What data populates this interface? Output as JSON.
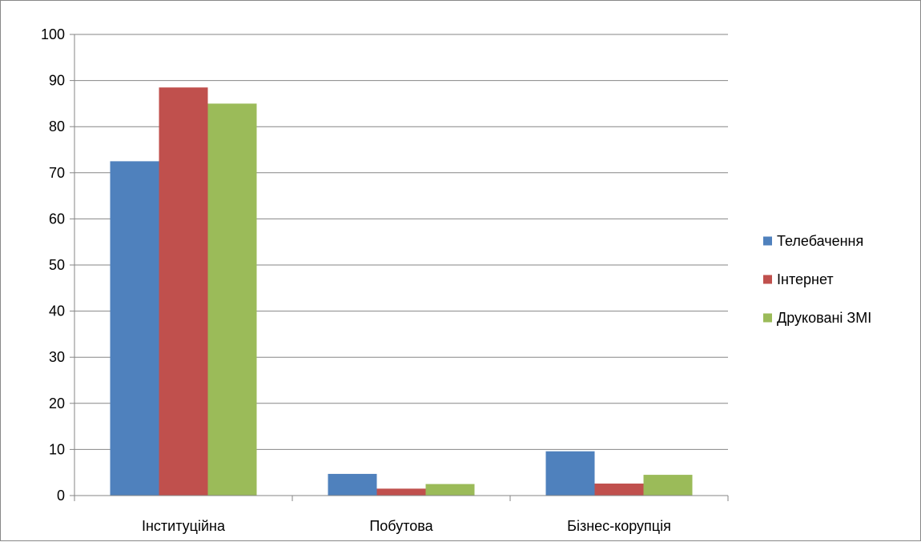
{
  "chart_data": {
    "type": "bar",
    "title": "",
    "xlabel": "",
    "ylabel": "",
    "categories": [
      "Інституційна",
      "Побутова",
      "Бізнес-корупція"
    ],
    "series": [
      {
        "name": "Телебачення",
        "color": "#4F81BD",
        "values": [
          72.5,
          4.7,
          9.6
        ]
      },
      {
        "name": "Інтернет",
        "color": "#C0504D",
        "values": [
          88.5,
          1.5,
          2.6
        ]
      },
      {
        "name": "Друковані ЗМІ",
        "color": "#9BBB59",
        "values": [
          85.0,
          2.5,
          4.5
        ]
      }
    ],
    "ylim": [
      0,
      100
    ],
    "yticks": [
      "0",
      "10",
      "20",
      "30",
      "40",
      "50",
      "60",
      "70",
      "80",
      "90",
      "100"
    ],
    "grid": true,
    "legend_position": "right"
  }
}
